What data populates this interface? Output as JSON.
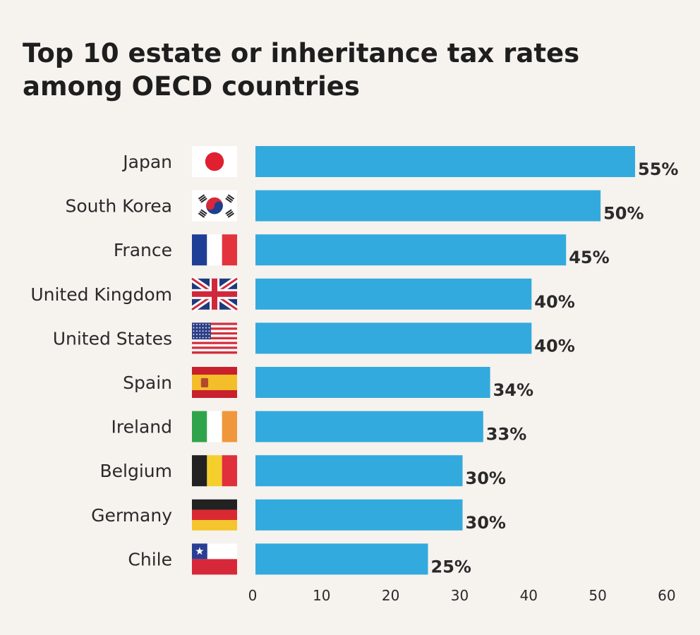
{
  "chart_data": {
    "type": "bar",
    "orientation": "horizontal",
    "title": "Top 10 estate or inheritance tax rates among OECD countries",
    "title_lines": [
      "Top 10 estate or inheritance tax rates",
      "among OECD countries"
    ],
    "categories": [
      "Japan",
      "South Korea",
      "France",
      "United Kingdom",
      "United States",
      "Spain",
      "Ireland",
      "Belgium",
      "Germany",
      "Chile"
    ],
    "values": [
      55,
      50,
      45,
      40,
      40,
      34,
      33,
      30,
      30,
      25
    ],
    "value_labels": [
      "55%",
      "50%",
      "45%",
      "40%",
      "40%",
      "34%",
      "33%",
      "30%",
      "30%",
      "25%"
    ],
    "flags": [
      "japan-flag-icon",
      "south-korea-flag-icon",
      "france-flag-icon",
      "united-kingdom-flag-icon",
      "united-states-flag-icon",
      "spain-flag-icon",
      "ireland-flag-icon",
      "belgium-flag-icon",
      "germany-flag-icon",
      "chile-flag-icon"
    ],
    "xlim": [
      0,
      60
    ],
    "xticks": [
      0,
      10,
      20,
      30,
      40,
      50,
      60
    ],
    "xlabel": "",
    "ylabel": "",
    "grid": false,
    "legend": "none",
    "bar_color": "#33aadd"
  }
}
